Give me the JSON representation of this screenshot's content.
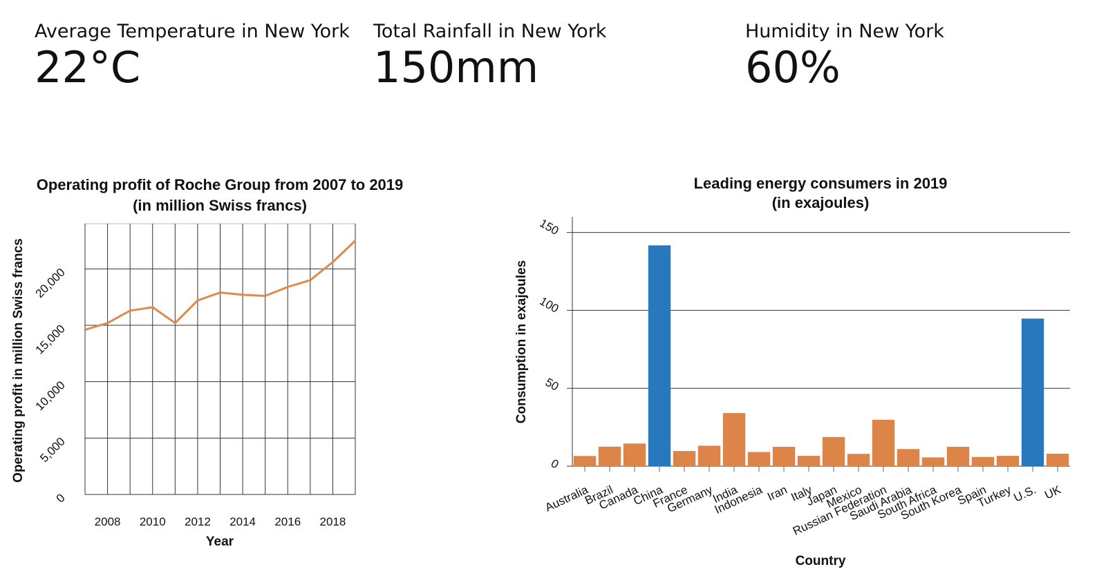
{
  "kpis": {
    "temperature": {
      "label": "Average Temperature in New York",
      "value": "22°C"
    },
    "rainfall": {
      "label": "Total Rainfall in New York",
      "value": "150mm"
    },
    "humidity": {
      "label": "Humidity in New York",
      "value": "60%"
    }
  },
  "chart_data": [
    {
      "type": "line",
      "title": "Operating profit of Roche Group from 2007 to 2019",
      "subtitle": "(in million Swiss francs)",
      "xlabel": "Year",
      "ylabel": "Operating profit in million Swiss francs",
      "xlim": [
        2007,
        2019
      ],
      "ylim": [
        0,
        24000
      ],
      "x_ticks": [
        "2008",
        "2010",
        "2012",
        "2014",
        "2016",
        "2018"
      ],
      "y_ticks": [
        "0",
        "5,000",
        "10,000",
        "15,000",
        "20,000"
      ],
      "grid": true,
      "series_color": "#e0894a",
      "x": [
        2007,
        2008,
        2009,
        2010,
        2011,
        2012,
        2013,
        2014,
        2015,
        2016,
        2017,
        2018,
        2019
      ],
      "values": [
        14600,
        15200,
        16300,
        16600,
        15200,
        17200,
        17900,
        17700,
        17600,
        18400,
        19000,
        20600,
        22500
      ]
    },
    {
      "type": "bar",
      "title": "Leading energy consumers in 2019",
      "subtitle": "(in exajoules)",
      "xlabel": "Country",
      "ylabel": "Consumption in exajoules",
      "ylim": [
        0,
        160
      ],
      "y_ticks": [
        "0",
        "50",
        "100",
        "150"
      ],
      "grid": true,
      "colors": {
        "default": "#dd8548",
        "highlight": "#2878bd"
      },
      "categories": [
        "Australia",
        "Brazil",
        "Canada",
        "China",
        "France",
        "Germany",
        "India",
        "Indonesia",
        "Iran",
        "Italy",
        "Japan",
        "Mexico",
        "Russian Federation",
        "Saudi Arabia",
        "South Africa",
        "South Korea",
        "Spain",
        "Turkey",
        "U.S.",
        "UK"
      ],
      "values": [
        6.5,
        12.5,
        14.5,
        141.7,
        9.7,
        13.1,
        34.1,
        9.1,
        12.4,
        6.6,
        18.7,
        7.9,
        29.8,
        11.0,
        5.6,
        12.4,
        5.9,
        6.6,
        94.7,
        8.0
      ],
      "highlighted": [
        "China",
        "U.S."
      ]
    }
  ]
}
